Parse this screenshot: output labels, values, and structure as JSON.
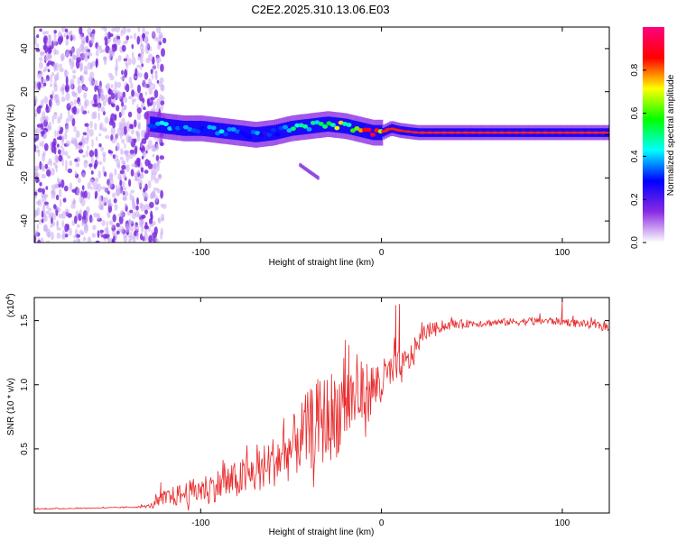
{
  "title": "C2E2.2025.310.13.06.E03",
  "colors": {
    "snr_line": "#e8282a",
    "axis": "#000000",
    "scatter_purple": "#7a2bdc",
    "scatter_light": "#c9a8f2",
    "line_core": "#e8282a"
  },
  "chart_data": [
    {
      "type": "spectrogram",
      "title": "C2E2.2025.310.13.06.E03",
      "xlabel": "Height of straight line (km)",
      "ylabel": "Frequency (Hz)",
      "xlim": [
        -192,
        126
      ],
      "ylim": [
        -50,
        50
      ],
      "x_ticks": [
        -100,
        0,
        100
      ],
      "x_tick_labels": [
        "-100",
        "0",
        "100"
      ],
      "y_ticks": [
        -40,
        -20,
        0,
        20,
        40
      ],
      "y_tick_labels": [
        "-40",
        "-20",
        "0",
        "20",
        "40"
      ],
      "colorbar": {
        "label": "Normalized spectral amplitude",
        "range": [
          0,
          1
        ],
        "ticks": [
          0.0,
          0.2,
          0.4,
          0.6,
          0.8
        ],
        "tick_labels": [
          "0.0",
          "0.2",
          "0.4",
          "0.6",
          "0.8"
        ],
        "stops": [
          "#ffffff",
          "#8a2be2",
          "#0000ff",
          "#00ffff",
          "#00ff00",
          "#ffff00",
          "#ff0000",
          "#ff007f"
        ]
      },
      "noise_region": {
        "x_range": [
          -192,
          -126
        ],
        "y_range": [
          -50,
          50
        ],
        "amplitude": 0.15
      },
      "signal_track": {
        "x": [
          -128,
          -120,
          -110,
          -100,
          -90,
          -80,
          -70,
          -60,
          -50,
          -40,
          -30,
          -20,
          -10,
          -5,
          0,
          5,
          10,
          20,
          40,
          60,
          80,
          100,
          126
        ],
        "freq": [
          5,
          4,
          3,
          3,
          2,
          1,
          0,
          1,
          3,
          4,
          5,
          4,
          2,
          1,
          1,
          3,
          2,
          1,
          1,
          1,
          1,
          1,
          1
        ],
        "amplitude": [
          0.35,
          0.4,
          0.4,
          0.38,
          0.38,
          0.35,
          0.35,
          0.35,
          0.45,
          0.5,
          0.55,
          0.65,
          0.75,
          0.8,
          0.85,
          0.85,
          0.88,
          0.9,
          0.9,
          0.9,
          0.9,
          0.9,
          0.9
        ]
      },
      "faint_branch": {
        "x": [
          -45,
          -35
        ],
        "freq": [
          -14,
          -20
        ]
      }
    },
    {
      "type": "line",
      "xlabel": "Height of straight line (km)",
      "ylabel": "SNR (10 * v/v)",
      "multiplier_label": "(x10",
      "multiplier_exp": "4",
      "multiplier_close": ")",
      "xlim": [
        -192,
        126
      ],
      "ylim": [
        0,
        16800
      ],
      "x_ticks": [
        -100,
        0,
        100
      ],
      "x_tick_labels": [
        "-100",
        "0",
        "100"
      ],
      "y_ticks": [
        5000,
        10000,
        15000
      ],
      "y_tick_labels": [
        "0.5",
        "1.0",
        "1.5"
      ],
      "series": [
        {
          "name": "SNR",
          "x": [
            -192,
            -170,
            -150,
            -135,
            -128,
            -120,
            -110,
            -100,
            -90,
            -80,
            -70,
            -60,
            -50,
            -45,
            -40,
            -35,
            -30,
            -25,
            -20,
            -15,
            -10,
            -5,
            0,
            5,
            10,
            15,
            20,
            25,
            30,
            40,
            50,
            60,
            70,
            80,
            90,
            100,
            110,
            120,
            126
          ],
          "values": [
            300,
            350,
            400,
            450,
            500,
            900,
            1200,
            1500,
            1800,
            2100,
            2600,
            3400,
            4200,
            5000,
            5500,
            6000,
            6300,
            6800,
            7500,
            8000,
            8500,
            9000,
            9600,
            10500,
            10800,
            11500,
            13000,
            14000,
            14300,
            14600,
            14700,
            14750,
            14800,
            14850,
            14900,
            14850,
            14700,
            14500,
            14400
          ],
          "noise": [
            40,
            40,
            40,
            60,
            150,
            700,
            900,
            1100,
            1300,
            1500,
            1700,
            2000,
            2400,
            2800,
            3200,
            3500,
            3600,
            3600,
            3300,
            3000,
            2600,
            2200,
            1800,
            1500,
            1400,
            1100,
            800,
            600,
            450,
            350,
            300,
            300,
            300,
            300,
            300,
            300,
            300,
            300,
            300
          ]
        }
      ],
      "peaks": {
        "x": [
          -122,
          -72,
          -45,
          -40,
          -36,
          -26,
          -20,
          -18,
          -8,
          8,
          10,
          100
        ],
        "values": [
          2400,
          3300,
          4100,
          6000,
          7100,
          5100,
          13500,
          13100,
          9600,
          16200,
          16300,
          16500
        ]
      }
    }
  ]
}
